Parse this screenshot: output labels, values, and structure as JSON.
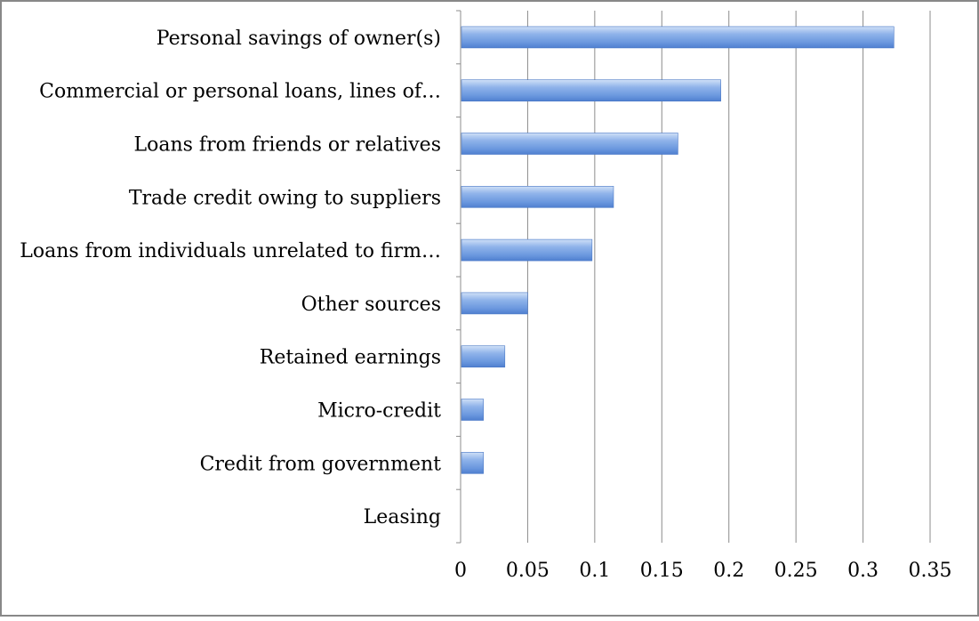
{
  "chart_data": {
    "type": "bar",
    "orientation": "horizontal",
    "title": "",
    "xlabel": "",
    "ylabel": "",
    "categories": [
      "Personal savings of owner(s)",
      "Commercial or personal loans, lines of…",
      "Loans from friends or relatives",
      "Trade credit owing to suppliers",
      "Loans from individuals unrelated to firm…",
      "Other sources",
      "Retained earnings",
      "Micro-credit",
      "Credit from government",
      "Leasing"
    ],
    "values": [
      0.323,
      0.194,
      0.162,
      0.114,
      0.098,
      0.05,
      0.033,
      0.017,
      0.017,
      0
    ],
    "xlim": [
      0,
      0.35
    ],
    "xticks": [
      "0",
      "0.05",
      "0.1",
      "0.15",
      "0.2",
      "0.25",
      "0.3",
      "0.35"
    ],
    "grid": "vertical",
    "legend": "none",
    "bar_color": "#6a97de"
  }
}
